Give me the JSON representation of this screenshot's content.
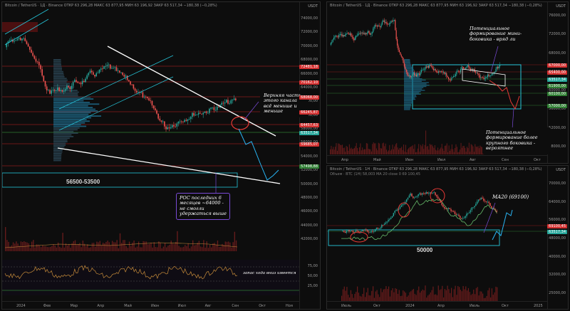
{
  "colors": {
    "up": "#26a69a",
    "down": "#ef5350",
    "trend": "#ffffff",
    "channel": "#26c6da",
    "projection": "#29b6f6",
    "accent_red": "#d32f2f",
    "accent_green": "#2e7d32",
    "note_border": "#7a4bd6",
    "volume": "#7a1f1f"
  },
  "left_panel": {
    "title": "Bitcoin / TetherUS · 1Д · Binance  ОТКР 63 296,28  МАКС 63 877,95  МИН 63 196,92  ЗАКР 63 517,34  −180,38 (−0,28%)",
    "currency": "USDT",
    "y_ticks": [
      "74000,00",
      "72000,00",
      "70000,00",
      "68000,00",
      "66000,00",
      "64000,00",
      "62000,00",
      "60000,00",
      "58000,00",
      "56000,00",
      "54000,00",
      "52000,00",
      "50000,00",
      "48000,00",
      "46000,00",
      "44000,00",
      "42000,00"
    ],
    "price_labels": [
      {
        "text": "72481,18",
        "color": "#d32f2f"
      },
      {
        "text": "70162,10",
        "color": "#d32f2f"
      },
      {
        "text": "68068,00",
        "color": "#d32f2f"
      },
      {
        "text": "66245,87",
        "color": "#d32f2f"
      },
      {
        "text": "64457,63",
        "color": "#d32f2f"
      },
      {
        "text": "63517,34",
        "color": "#26a69a"
      },
      {
        "text": "59685,07",
        "color": "#d32f2f"
      },
      {
        "text": "57498,88",
        "color": "#2e7d32"
      }
    ],
    "x_ticks": [
      "2024",
      "Фев",
      "Мар",
      "Апр",
      "Май",
      "Июн",
      "Июл",
      "Авг",
      "Сен",
      "Окт",
      "Ноя"
    ],
    "range_label": "56500-53500",
    "note_top": "Верхняя часть этого канала всё меньше и меньше",
    "note_bottom": "POC последних 6 месяцев ~64000 - не смогли удержаться выше",
    "osc_note": "запас ходa вниз имеется",
    "osc_ticks": [
      "75,00",
      "50,00",
      "25,00"
    ]
  },
  "top_right_panel": {
    "title": "Bitcoin / TetherUS · 1Д · Binance  ОТКР 63 296,28  МАКС 63 877,95  МИН 63 196,92  ЗАКР 63 517,34  −180,38 (−0,28%)",
    "currency": "USDT",
    "y_ticks": [
      "76000,00",
      "72000,00",
      "68000,00",
      "64000,00",
      "60000,00",
      "56000,00",
      "52000,00",
      "48000,00"
    ],
    "price_labels": [
      {
        "text": "67000,00",
        "color": "#d32f2f"
      },
      {
        "text": "65400,00",
        "color": "#d32f2f"
      },
      {
        "text": "63517,34",
        "color": "#26a69a"
      },
      {
        "text": "61900,00",
        "color": "#2e7d32"
      },
      {
        "text": "60100,00",
        "color": "#2e7d32"
      },
      {
        "text": "57000,00",
        "color": "#2e7d32"
      }
    ],
    "x_ticks": [
      "Апр",
      "Май",
      "Июн",
      "Июл",
      "Авг",
      "Сен",
      "Окт"
    ],
    "note_top": "Потенциальное формирование мини-боковика - вряд ли",
    "note_bottom": "Потенциальное формирование более крупного боковика - вероятнее"
  },
  "bottom_right_panel": {
    "title": "Bitcoin / TetherUS · 1Н · Binance  ОТКР 63 296,28  МАКС 63 877,95  МИН 63 196,92  ЗАКР 63 517,34  −180,38 (−0,28%)",
    "subtitle": "Объем · BTC (1Н)  58,003  MA 20 close 0  69 100,45",
    "currency": "USDT",
    "y_ticks": [
      "70000,00",
      "64000,00",
      "56000,00",
      "48000,00",
      "40000,00",
      "32000,00",
      "25000,00"
    ],
    "price_labels": [
      {
        "text": "69100,45",
        "color": "#d32f2f"
      },
      {
        "text": "63517,34",
        "color": "#26a69a"
      }
    ],
    "x_ticks": [
      "Июль",
      "Окт",
      "2024",
      "Апр",
      "Июль",
      "Окт",
      "2025"
    ],
    "ma_label": "MA20 (69100)",
    "range_label": "50000"
  }
}
